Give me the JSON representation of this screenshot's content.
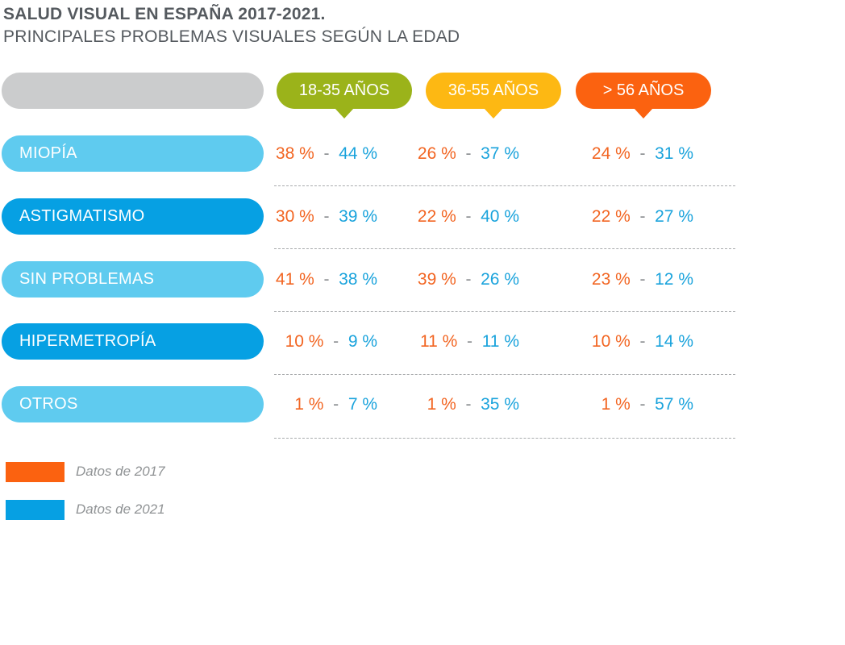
{
  "title": "SALUD VISUAL EN ESPAÑA 2017-2021.",
  "subtitle": "PRINCIPALES PROBLEMAS VISUALES SEGÚN LA EDAD",
  "age_groups": [
    {
      "label": "18-35 AÑOS",
      "color": "#9bb31a"
    },
    {
      "label": "36-55 AÑOS",
      "color": "#fdb813"
    },
    {
      "label": "> 56 AÑOS",
      "color": "#fb6210"
    }
  ],
  "rows": [
    {
      "label": "MIOPÍA",
      "color": "#5fcbef",
      "cells": [
        {
          "v17": "38 %",
          "v21": "44 %"
        },
        {
          "v17": "26 %",
          "v21": "37 %"
        },
        {
          "v17": "24 %",
          "v21": "31 %"
        }
      ]
    },
    {
      "label": "ASTIGMATISMO",
      "color": "#06a0e3",
      "cells": [
        {
          "v17": "30 %",
          "v21": "39 %"
        },
        {
          "v17": "22 %",
          "v21": "40 %"
        },
        {
          "v17": "22 %",
          "v21": "27 %"
        }
      ]
    },
    {
      "label": "SIN PROBLEMAS",
      "color": "#5fcbef",
      "cells": [
        {
          "v17": "41 %",
          "v21": "38 %"
        },
        {
          "v17": "39 %",
          "v21": "26 %"
        },
        {
          "v17": "23 %",
          "v21": "12 %"
        }
      ]
    },
    {
      "label": "HIPERMETROPÍA",
      "color": "#06a0e3",
      "cells": [
        {
          "v17": "10 %",
          "v21": "9 %"
        },
        {
          "v17": "11 %",
          "v21": "11 %"
        },
        {
          "v17": "10 %",
          "v21": "14 %"
        }
      ]
    },
    {
      "label": "OTROS",
      "color": "#5fcbef",
      "cells": [
        {
          "v17": "1 %",
          "v21": "7 %"
        },
        {
          "v17": "1 %",
          "v21": "35 %"
        },
        {
          "v17": "1 %",
          "v21": "57 %"
        }
      ]
    }
  ],
  "separator": "-",
  "legend": [
    {
      "label": "Datos de 2017",
      "color": "#fb6210"
    },
    {
      "label": "Datos de 2021",
      "color": "#06a0e3"
    }
  ],
  "chart_data": {
    "type": "table",
    "title": "SALUD VISUAL EN ESPAÑA 2017-2021.",
    "subtitle": "PRINCIPALES PROBLEMAS VISUALES SEGÚN LA EDAD",
    "columns": [
      "18-35 AÑOS",
      "36-55 AÑOS",
      "> 56 AÑOS"
    ],
    "categories": [
      "MIOPÍA",
      "ASTIGMATISMO",
      "SIN PROBLEMAS",
      "HIPERMETROPÍA",
      "OTROS"
    ],
    "series": [
      {
        "name": "Datos de 2017",
        "values": [
          [
            38,
            26,
            24
          ],
          [
            30,
            22,
            22
          ],
          [
            41,
            39,
            23
          ],
          [
            10,
            11,
            10
          ],
          [
            1,
            1,
            1
          ]
        ]
      },
      {
        "name": "Datos de 2021",
        "values": [
          [
            44,
            37,
            31
          ],
          [
            39,
            40,
            27
          ],
          [
            38,
            26,
            12
          ],
          [
            9,
            11,
            14
          ],
          [
            7,
            35,
            57
          ]
        ]
      }
    ],
    "unit": "%"
  }
}
